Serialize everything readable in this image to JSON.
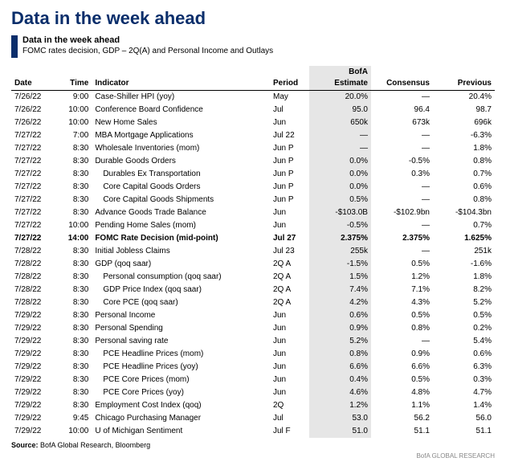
{
  "title": "Data in the week ahead",
  "subtitle": "Data in the week ahead",
  "description": "FOMC rates decision, GDP – 2Q(A) and Personal Income and Outlays",
  "source_label": "Source:",
  "source_text": "BofA Global Research, Bloomberg",
  "footer": "BofA GLOBAL RESEARCH",
  "columns": [
    {
      "key": "date",
      "label": "Date",
      "align": "left"
    },
    {
      "key": "time",
      "label": "Time",
      "align": "right"
    },
    {
      "key": "indicator",
      "label": "Indicator",
      "align": "left"
    },
    {
      "key": "period",
      "label": "Period",
      "align": "left"
    },
    {
      "key": "estimate",
      "label1": "BofA",
      "label2": "Estimate",
      "align": "right",
      "highlight": true
    },
    {
      "key": "consensus",
      "label": "Consensus",
      "align": "right"
    },
    {
      "key": "previous",
      "label": "Previous",
      "align": "right"
    }
  ],
  "colors": {
    "title": "#0a2e6b",
    "bar": "#0a2e6b",
    "highlight_bg": "#e6e6e6",
    "text": "#000000",
    "footer": "#888888"
  },
  "rows": [
    {
      "date": "7/26/22",
      "time": "9:00",
      "indicator": "Case-Shiller HPI (yoy)",
      "period": "May",
      "estimate": "20.0%",
      "consensus": "—",
      "previous": "20.4%"
    },
    {
      "date": "7/26/22",
      "time": "10:00",
      "indicator": "Conference Board Confidence",
      "period": "Jul",
      "estimate": "95.0",
      "consensus": "96.4",
      "previous": "98.7"
    },
    {
      "date": "7/26/22",
      "time": "10:00",
      "indicator": "New Home Sales",
      "period": "Jun",
      "estimate": "650k",
      "consensus": "673k",
      "previous": "696k"
    },
    {
      "date": "7/27/22",
      "time": "7:00",
      "indicator": "MBA Mortgage Applications",
      "period": "Jul 22",
      "estimate": "—",
      "consensus": "—",
      "previous": "-6.3%"
    },
    {
      "date": "7/27/22",
      "time": "8:30",
      "indicator": "Wholesale Inventories (mom)",
      "period": "Jun P",
      "estimate": "—",
      "consensus": "—",
      "previous": "1.8%"
    },
    {
      "date": "7/27/22",
      "time": "8:30",
      "indicator": "Durable Goods Orders",
      "period": "Jun P",
      "estimate": "0.0%",
      "consensus": "-0.5%",
      "previous": "0.8%"
    },
    {
      "date": "7/27/22",
      "time": "8:30",
      "indicator": "Durables Ex Transportation",
      "indent": 1,
      "period": "Jun P",
      "estimate": "0.0%",
      "consensus": "0.3%",
      "previous": "0.7%"
    },
    {
      "date": "7/27/22",
      "time": "8:30",
      "indicator": "Core Capital Goods Orders",
      "indent": 1,
      "period": "Jun P",
      "estimate": "0.0%",
      "consensus": "—",
      "previous": "0.6%"
    },
    {
      "date": "7/27/22",
      "time": "8:30",
      "indicator": "Core Capital Goods Shipments",
      "indent": 1,
      "period": "Jun P",
      "estimate": "0.5%",
      "consensus": "—",
      "previous": "0.8%"
    },
    {
      "date": "7/27/22",
      "time": "8:30",
      "indicator": "Advance Goods Trade Balance",
      "period": "Jun",
      "estimate": "-$103.0B",
      "consensus": "-$102.9bn",
      "previous": "-$104.3bn"
    },
    {
      "date": "7/27/22",
      "time": "10:00",
      "indicator": "Pending Home Sales (mom)",
      "period": "Jun",
      "estimate": "-0.5%",
      "consensus": "—",
      "previous": "0.7%"
    },
    {
      "date": "7/27/22",
      "time": "14:00",
      "indicator": "FOMC Rate Decision (mid-point)",
      "period": "Jul 27",
      "estimate": "2.375%",
      "consensus": "2.375%",
      "previous": "1.625%",
      "bold": true
    },
    {
      "date": "7/28/22",
      "time": "8:30",
      "indicator": "Initial Jobless Claims",
      "period": "Jul 23",
      "estimate": "255k",
      "consensus": "—",
      "previous": "251k"
    },
    {
      "date": "7/28/22",
      "time": "8:30",
      "indicator": "GDP (qoq saar)",
      "period": "2Q A",
      "estimate": "-1.5%",
      "consensus": "0.5%",
      "previous": "-1.6%"
    },
    {
      "date": "7/28/22",
      "time": "8:30",
      "indicator": "Personal consumption (qoq saar)",
      "indent": 1,
      "period": "2Q A",
      "estimate": "1.5%",
      "consensus": "1.2%",
      "previous": "1.8%"
    },
    {
      "date": "7/28/22",
      "time": "8:30",
      "indicator": "GDP Price Index (qoq saar)",
      "indent": 1,
      "period": "2Q A",
      "estimate": "7.4%",
      "consensus": "7.1%",
      "previous": "8.2%"
    },
    {
      "date": "7/28/22",
      "time": "8:30",
      "indicator": "Core PCE (qoq saar)",
      "indent": 1,
      "period": "2Q A",
      "estimate": "4.2%",
      "consensus": "4.3%",
      "previous": "5.2%"
    },
    {
      "date": "7/29/22",
      "time": "8:30",
      "indicator": "Personal Income",
      "period": "Jun",
      "estimate": "0.6%",
      "consensus": "0.5%",
      "previous": "0.5%"
    },
    {
      "date": "7/29/22",
      "time": "8:30",
      "indicator": "Personal Spending",
      "period": "Jun",
      "estimate": "0.9%",
      "consensus": "0.8%",
      "previous": "0.2%"
    },
    {
      "date": "7/29/22",
      "time": "8:30",
      "indicator": "Personal saving rate",
      "period": "Jun",
      "estimate": "5.2%",
      "consensus": "—",
      "previous": "5.4%"
    },
    {
      "date": "7/29/22",
      "time": "8:30",
      "indicator": "PCE Headline Prices (mom)",
      "indent": 1,
      "period": "Jun",
      "estimate": "0.8%",
      "consensus": "0.9%",
      "previous": "0.6%"
    },
    {
      "date": "7/29/22",
      "time": "8:30",
      "indicator": "PCE Headline Prices (yoy)",
      "indent": 1,
      "period": "Jun",
      "estimate": "6.6%",
      "consensus": "6.6%",
      "previous": "6.3%"
    },
    {
      "date": "7/29/22",
      "time": "8:30",
      "indicator": "PCE Core Prices (mom)",
      "indent": 1,
      "period": "Jun",
      "estimate": "0.4%",
      "consensus": "0.5%",
      "previous": "0.3%"
    },
    {
      "date": "7/29/22",
      "time": "8:30",
      "indicator": "PCE Core Prices (yoy)",
      "indent": 1,
      "period": "Jun",
      "estimate": "4.6%",
      "consensus": "4.8%",
      "previous": "4.7%"
    },
    {
      "date": "7/29/22",
      "time": "8:30",
      "indicator": "Employment Cost Index (qoq)",
      "period": "2Q",
      "estimate": "1.2%",
      "consensus": "1.1%",
      "previous": "1.4%"
    },
    {
      "date": "7/29/22",
      "time": "9:45",
      "indicator": "Chicago Purchasing Manager",
      "period": "Jul",
      "estimate": "53.0",
      "consensus": "56.2",
      "previous": "56.0"
    },
    {
      "date": "7/29/22",
      "time": "10:00",
      "indicator": "U of Michigan Sentiment",
      "period": "Jul F",
      "estimate": "51.0",
      "consensus": "51.1",
      "previous": "51.1"
    }
  ]
}
